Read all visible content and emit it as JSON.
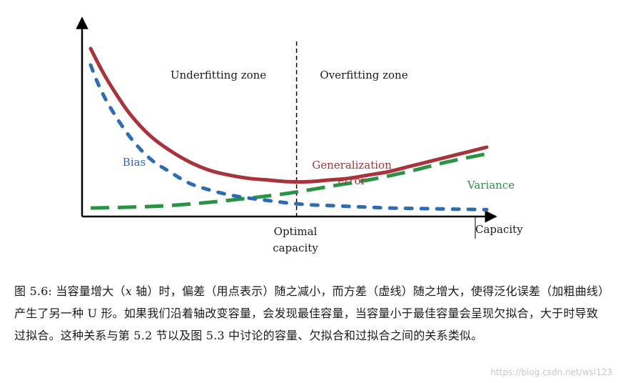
{
  "chart_data": {
    "type": "line",
    "title": "",
    "xlabel": "Capacity",
    "ylabel": "",
    "xlim": [
      0,
      1
    ],
    "ylim": [
      0,
      1
    ],
    "grid": false,
    "x_tick_labels": [],
    "y_tick_labels": [],
    "optimal_x": 0.52,
    "zones": [
      {
        "label": "Underfitting zone"
      },
      {
        "label": "Overfitting zone"
      }
    ],
    "optimal_label_line1": "Optimal",
    "optimal_label_line2": "capacity",
    "series": [
      {
        "name": "Bias",
        "style": "dotted",
        "color": "#2e6db4",
        "x": [
          0.0,
          0.02,
          0.05,
          0.1,
          0.15,
          0.2,
          0.25,
          0.3,
          0.35,
          0.4,
          0.45,
          0.5,
          0.55,
          0.6,
          0.65,
          0.7,
          0.75,
          0.8,
          0.85,
          0.9,
          0.95,
          1.0
        ],
        "values": [
          0.9,
          0.78,
          0.64,
          0.46,
          0.33,
          0.25,
          0.18,
          0.14,
          0.11,
          0.09,
          0.075,
          0.06,
          0.05,
          0.045,
          0.04,
          0.035,
          0.03,
          0.028,
          0.026,
          0.024,
          0.022,
          0.02
        ]
      },
      {
        "name": "Variance",
        "style": "dashed",
        "color": "#2a9345",
        "x": [
          0.0,
          0.1,
          0.2,
          0.3,
          0.4,
          0.5,
          0.6,
          0.7,
          0.8,
          0.9,
          1.0
        ],
        "values": [
          0.03,
          0.035,
          0.045,
          0.065,
          0.09,
          0.12,
          0.16,
          0.2,
          0.25,
          0.31,
          0.36
        ]
      },
      {
        "name": "Generalization error",
        "name_line1": "Generalization",
        "name_line2": "error",
        "style": "solid",
        "color": "#a8333a",
        "x": [
          0.0,
          0.03,
          0.06,
          0.1,
          0.15,
          0.2,
          0.25,
          0.3,
          0.35,
          0.4,
          0.45,
          0.5,
          0.55,
          0.6,
          0.65,
          0.7,
          0.75,
          0.8,
          0.85,
          0.9,
          0.95,
          1.0
        ],
        "values": [
          1.0,
          0.86,
          0.74,
          0.6,
          0.47,
          0.38,
          0.31,
          0.26,
          0.23,
          0.21,
          0.2,
          0.19,
          0.19,
          0.2,
          0.21,
          0.23,
          0.25,
          0.28,
          0.31,
          0.34,
          0.37,
          0.4
        ]
      }
    ]
  },
  "caption": {
    "prefix": "图 5.6: 当容量增大（",
    "x_symbol": "x",
    "rest": " 轴）时，偏差（用点表示）随之减小，而方差（虚线）随之增大，使得泛化误差（加粗曲线）产生了另一种 U 形。如果我们沿着轴改变容量，会发现最佳容量，当容量小于最佳容量会呈现欠拟合，大于时导致过拟合。这种关系与第 5.2 节以及图 5.3 中讨论的容量、欠拟合和过拟合之间的关系类似。"
  },
  "watermark": "https://blog.csdn.net/wsl123"
}
